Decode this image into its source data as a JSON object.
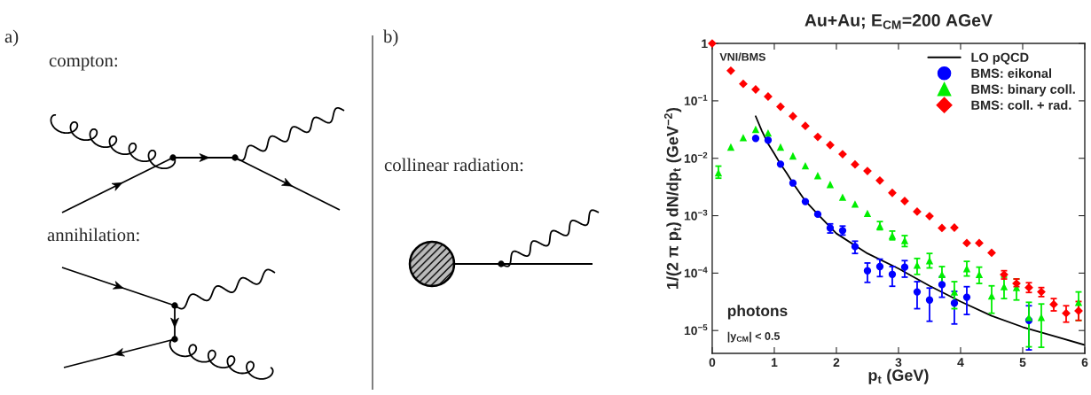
{
  "chart_data": {
    "type": "scatter",
    "title": "Au+Au; E$_{CM}$=200 AGeV",
    "xlabel": "p$_{t}$ (GeV)",
    "ylabel": "1/(2 π p$_{t}$) dN/dp$_{t}$ (GeV$^{−2}$)",
    "log": "y",
    "xlim": [
      0,
      6
    ],
    "xticks": [
      0,
      1,
      2,
      3,
      4,
      5,
      6
    ],
    "ylim": [
      4e-06,
      1
    ],
    "yticks": [
      {
        "value": 1e-05,
        "label": "10$^{−5}$"
      },
      {
        "value": 0.0001,
        "label": "10$^{−4}$"
      },
      {
        "value": 0.001,
        "label": "10$^{−3}$"
      },
      {
        "value": 0.01,
        "label": "10$^{−2}$"
      },
      {
        "value": 0.1,
        "label": "10$^{−1}$"
      },
      1
    ],
    "grid": false,
    "legend": "top right",
    "annotations": [
      "a)",
      "compton:",
      "annihilation:",
      "b)",
      "collinear radiation:",
      "VNI/BMS",
      "photons",
      "|y$_{CM}$| < 0.5"
    ],
    "series": [
      {
        "name": "LO pQCD",
        "type": "line",
        "color": "#000000",
        "marker": "none",
        "x": [
          0.7,
          0.8,
          0.9,
          1.0,
          1.1,
          1.2,
          1.3,
          1.5,
          1.7,
          2.0,
          2.5,
          3.0,
          3.5,
          4.0,
          4.5,
          5.0,
          5.5,
          6.0
        ],
        "values": [
          0.054,
          0.03,
          0.018,
          0.012,
          0.0079,
          0.0055,
          0.0037,
          0.0018,
          0.00106,
          0.00049,
          0.00022,
          0.00012,
          6e-05,
          3.2e-05,
          1.8e-05,
          1.15e-05,
          8e-06,
          5.6e-06
        ]
      },
      {
        "name": "BMS: eikonal",
        "color": "#0000ff",
        "marker": "circle",
        "x": [
          0.7,
          0.9,
          1.1,
          1.3,
          1.5,
          1.7,
          1.9,
          2.1,
          2.3,
          2.5,
          2.7,
          2.9,
          3.1,
          3.3,
          3.5,
          3.7,
          3.9,
          4.1,
          5.1
        ],
        "values": [
          0.0222,
          0.0207,
          0.0079,
          0.0037,
          0.00176,
          0.00106,
          0.00061,
          0.00055,
          0.00029,
          0.00011,
          0.00013,
          9.5e-05,
          0.000127,
          4.7e-05,
          3.4e-05,
          6.3e-05,
          3e-05,
          3.8e-05,
          1.5e-05
        ],
        "errors": [
          null,
          null,
          null,
          null,
          null,
          null,
          [
            0.0005,
            0.00072
          ],
          [
            0.00046,
            0.00066
          ],
          [
            0.00022,
            0.00036
          ],
          [
            6.9e-05,
            0.00015
          ],
          [
            8.7e-05,
            0.000175
          ],
          [
            5.9e-05,
            0.00013
          ],
          [
            8.5e-05,
            0.000165
          ],
          [
            2.4e-05,
            7.1e-05
          ],
          [
            1.45e-05,
            5.5e-05
          ],
          [
            3.8e-05,
            8.7e-05
          ],
          [
            1.3e-05,
            4.8e-05
          ],
          [
            1.9e-05,
            5.8e-05
          ],
          [
            4.6e-06,
            2.7e-05
          ]
        ]
      },
      {
        "name": "BMS: binary coll.",
        "color": "#00ee00",
        "marker": "triangle",
        "x": [
          0.1,
          0.3,
          0.5,
          0.7,
          0.9,
          1.1,
          1.3,
          1.5,
          1.7,
          1.9,
          2.1,
          2.3,
          2.5,
          2.7,
          2.9,
          3.1,
          3.3,
          3.5,
          3.7,
          3.9,
          4.1,
          4.3,
          4.5,
          4.7,
          4.9,
          5.1,
          5.3,
          5.9
        ],
        "values": [
          0.0056,
          0.0157,
          0.0229,
          0.032,
          0.0276,
          0.0157,
          0.011,
          0.0074,
          0.005,
          0.0035,
          0.0021,
          0.0016,
          0.0011,
          0.00066,
          0.00045,
          0.00037,
          0.000138,
          0.000165,
          9.5e-05,
          4.7e-05,
          0.00012,
          9.5e-05,
          4e-05,
          5.8e-05,
          5.6e-05,
          1.7e-05,
          1.7e-05,
          3.1e-05
        ],
        "errors": [
          [
            0.0045,
            0.0073
          ],
          null,
          null,
          null,
          null,
          null,
          null,
          null,
          null,
          null,
          null,
          null,
          null,
          [
            0.00057,
            0.00079
          ],
          [
            0.00038,
            0.00054
          ],
          [
            0.00029,
            0.00045
          ],
          [
            9.5e-05,
            0.00018
          ],
          [
            0.000123,
            0.00022
          ],
          [
            6.6e-05,
            0.00013
          ],
          [
            2.4e-05,
            7.1e-05
          ],
          [
            8.9e-05,
            0.00016
          ],
          [
            6.6e-05,
            0.000127
          ],
          [
            2e-05,
            6e-05
          ],
          [
            3.6e-05,
            8.5e-05
          ],
          [
            3.4e-05,
            7.9e-05
          ],
          [
            5.2e-06,
            3.1e-05
          ],
          [
            5.1e-06,
            2.9e-05
          ],
          [
            1.5e-05,
            4.7e-05
          ]
        ]
      },
      {
        "name": "BMS: coll. + rad.",
        "color": "#ff0000",
        "marker": "diamond",
        "x": [
          0.0,
          0.3,
          0.5,
          0.7,
          0.9,
          1.1,
          1.3,
          1.5,
          1.7,
          1.9,
          2.1,
          2.3,
          2.5,
          2.7,
          2.9,
          3.1,
          3.3,
          3.5,
          3.7,
          3.9,
          4.1,
          4.3,
          4.5,
          4.7,
          4.9,
          5.1,
          5.3,
          5.5,
          5.7,
          5.9
        ],
        "values": [
          1,
          0.335,
          0.198,
          0.158,
          0.119,
          0.079,
          0.054,
          0.0366,
          0.0236,
          0.017,
          0.0118,
          0.0078,
          0.006,
          0.0041,
          0.0025,
          0.0018,
          0.00118,
          0.00098,
          0.00061,
          0.00062,
          0.000334,
          0.000334,
          0.000226,
          9.4e-05,
          6.6e-05,
          5.6e-05,
          4.7e-05,
          2.85e-05,
          2e-05,
          2.2e-05
        ],
        "errors": [
          null,
          null,
          null,
          null,
          null,
          null,
          null,
          null,
          null,
          null,
          null,
          null,
          null,
          null,
          null,
          null,
          null,
          null,
          null,
          null,
          null,
          null,
          null,
          [
            7.9e-05,
            0.00011
          ],
          [
            5.8e-05,
            7.9e-05
          ],
          [
            4.6e-05,
            6.8e-05
          ],
          [
            3.9e-05,
            5.6e-05
          ],
          [
            2.2e-05,
            3.6e-05
          ],
          [
            1.4e-05,
            2.7e-05
          ],
          [
            1.5e-05,
            3.2e-05
          ]
        ]
      }
    ]
  }
}
